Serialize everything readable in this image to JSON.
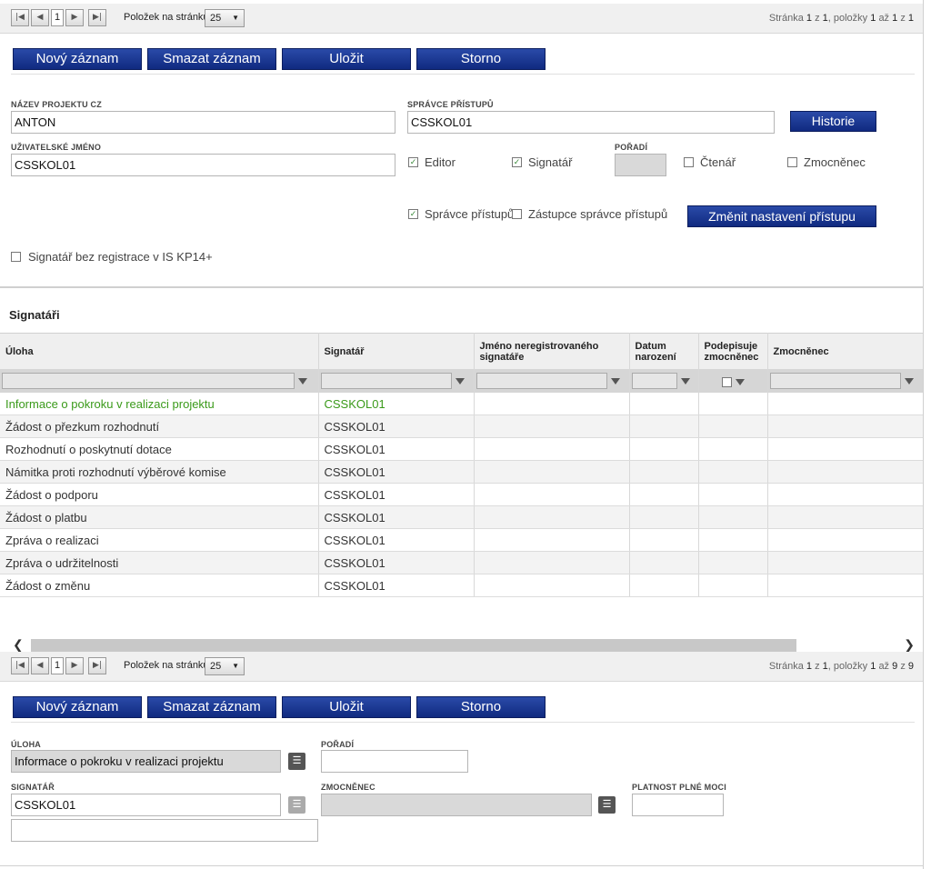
{
  "pager_top": {
    "page": "1",
    "per_page_label": "Položek na stránku",
    "per_page": "25",
    "info_prefix": "Stránka",
    "info_page": "1",
    "info_of": "z",
    "info_pages": "1",
    "info_items_label": ", položky",
    "info_from": "1",
    "info_to_label": "až",
    "info_to": "1",
    "info_total_label": "z",
    "info_total": "1"
  },
  "toolbar_top": {
    "new": "Nový záznam",
    "delete": "Smazat záznam",
    "save": "Uložit",
    "cancel": "Storno"
  },
  "form": {
    "project_name_label": "NÁZEV PROJEKTU CZ",
    "project_name_value": "ANTON",
    "access_admin_label": "SPRÁVCE PŘÍSTUPŮ",
    "access_admin_value": "CSSKOL01",
    "history_button": "Historie",
    "username_label": "UŽIVATELSKÉ JMÉNO",
    "username_value": "CSSKOL01",
    "editor_label": "Editor",
    "signatory_label": "Signatář",
    "order_label": "POŘADÍ",
    "reader_label": "Čtenář",
    "proxy_label": "Zmocněnec",
    "access_admin_chk_label": "Správce přístupů",
    "access_admin_deputy_label": "Zástupce správce přístupů",
    "change_access_button": "Změnit nastavení přístupu",
    "unregistered_signatory_label": "Signatář bez registrace v IS KP14+"
  },
  "section_title": "Signatáři",
  "grid": {
    "columns": [
      "Úloha",
      "Signatář",
      "Jméno neregistrovaného signatáře",
      "Datum narození",
      "Podepisuje zmocněnec",
      "Zmocněnec"
    ],
    "rows": [
      [
        "Informace o pokroku v realizaci projektu",
        "CSSKOL01"
      ],
      [
        "Žádost o přezkum rozhodnutí",
        "CSSKOL01"
      ],
      [
        "Rozhodnutí o poskytnutí dotace",
        "CSSKOL01"
      ],
      [
        "Námitka proti rozhodnutí výběrové komise",
        "CSSKOL01"
      ],
      [
        "Žádost o podporu",
        "CSSKOL01"
      ],
      [
        "Žádost o platbu",
        "CSSKOL01"
      ],
      [
        "Zpráva o realizaci",
        "CSSKOL01"
      ],
      [
        "Zpráva o udržitelnosti",
        "CSSKOL01"
      ],
      [
        "Žádost o změnu",
        "CSSKOL01"
      ]
    ]
  },
  "pager_bottom": {
    "page": "1",
    "per_page_label": "Položek na stránku",
    "per_page": "25",
    "info_prefix": "Stránka",
    "info_page": "1",
    "info_of": "z",
    "info_pages": "1",
    "info_items_label": ", položky",
    "info_from": "1",
    "info_to_label": "až",
    "info_to": "9",
    "info_total_label": "z",
    "info_total": "9"
  },
  "toolbar_bottom": {
    "new": "Nový záznam",
    "delete": "Smazat záznam",
    "save": "Uložit",
    "cancel": "Storno"
  },
  "detail": {
    "task_label": "ÚLOHA",
    "task_value": "Informace o pokroku v realizaci projektu",
    "order_label": "POŘADÍ",
    "signatory_label": "SIGNATÁŘ",
    "signatory_value": "CSSKOL01",
    "proxy_label": "ZMOCNĚNEC",
    "validity_label": "PLATNOST PLNÉ MOCI"
  }
}
